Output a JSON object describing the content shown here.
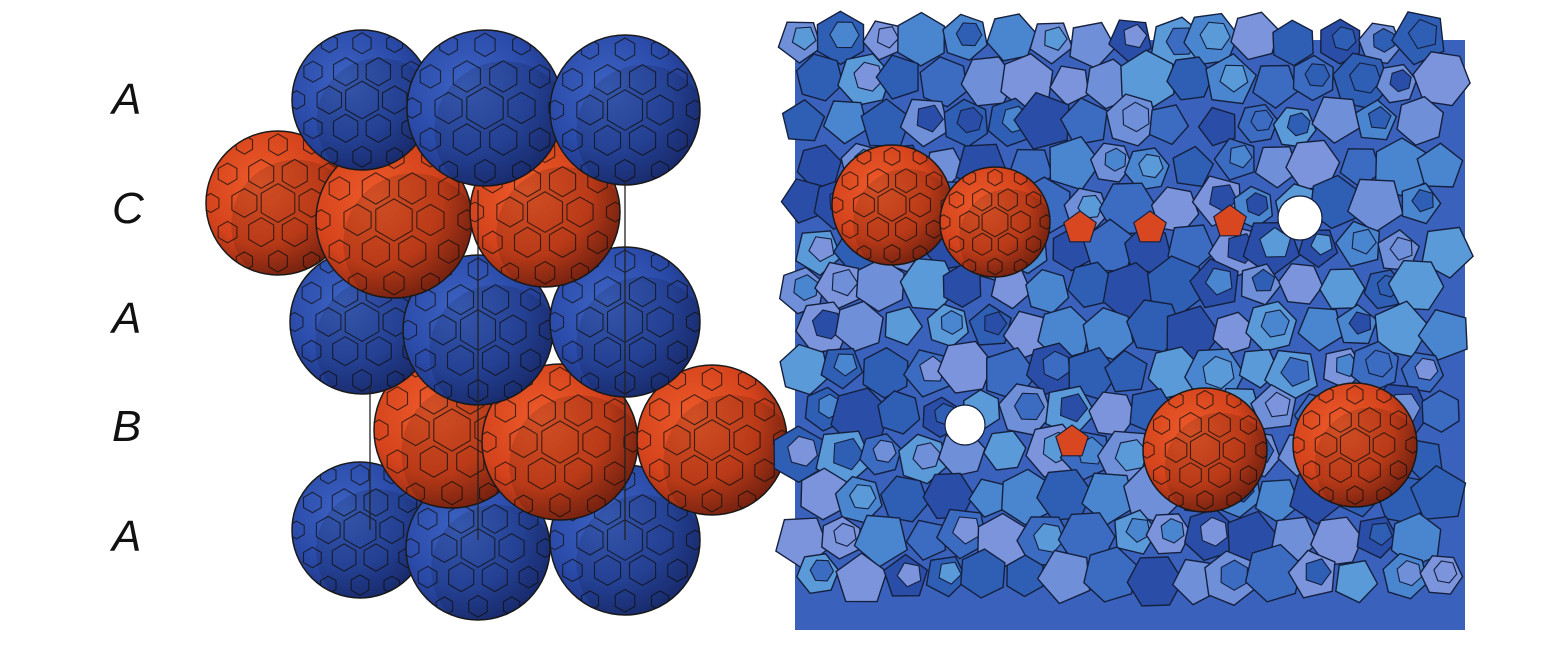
{
  "layers": [
    {
      "label": "A",
      "kind": "blue"
    },
    {
      "label": "C",
      "kind": "red"
    },
    {
      "label": "A",
      "kind": "blue"
    },
    {
      "label": "B",
      "kind": "red"
    },
    {
      "label": "A",
      "kind": "blue"
    }
  ],
  "colors": {
    "blue": "#2b4fb0",
    "blue_light": "#4a86d0",
    "blue_pale": "#6f8fd8",
    "red": "#d8471f",
    "red_dark": "#8c2a16",
    "outline": "#1a1a1a"
  },
  "panels": [
    {
      "name": "stacking-model",
      "description_icon": "sphere-stack-icon"
    },
    {
      "name": "polyhedral-framework",
      "description_icon": "polyhedra-network-icon"
    }
  ]
}
